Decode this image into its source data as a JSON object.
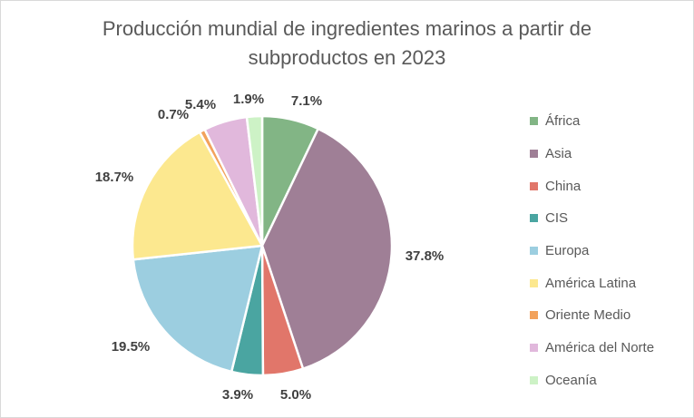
{
  "chart_data": {
    "type": "pie",
    "title_lines": [
      "Producción mundial de ingredientes marinos a partir de",
      "subproductos en 2023"
    ],
    "legend_position": "right",
    "slices": [
      {
        "label": "África",
        "value": 7.1,
        "text": "7.1%",
        "color": "#82b585"
      },
      {
        "label": "Asia",
        "value": 37.8,
        "text": "37.8%",
        "color": "#9f7f96"
      },
      {
        "label": "China",
        "value": 5.0,
        "text": "5.0%",
        "color": "#e1766a"
      },
      {
        "label": "CIS",
        "value": 3.9,
        "text": "3.9%",
        "color": "#4aa5a1"
      },
      {
        "label": "Europa",
        "value": 19.5,
        "text": "19.5%",
        "color": "#9ccee0"
      },
      {
        "label": "América Latina",
        "value": 18.7,
        "text": "18.7%",
        "color": "#fce88f"
      },
      {
        "label": "Oriente Medio",
        "value": 0.7,
        "text": "0.7%",
        "color": "#f2a25c"
      },
      {
        "label": "América del Norte",
        "value": 5.4,
        "text": "5.4%",
        "color": "#e1b8dc"
      },
      {
        "label": "Oceanía",
        "value": 1.9,
        "text": "1.9%",
        "color": "#cdf2c6"
      }
    ]
  }
}
